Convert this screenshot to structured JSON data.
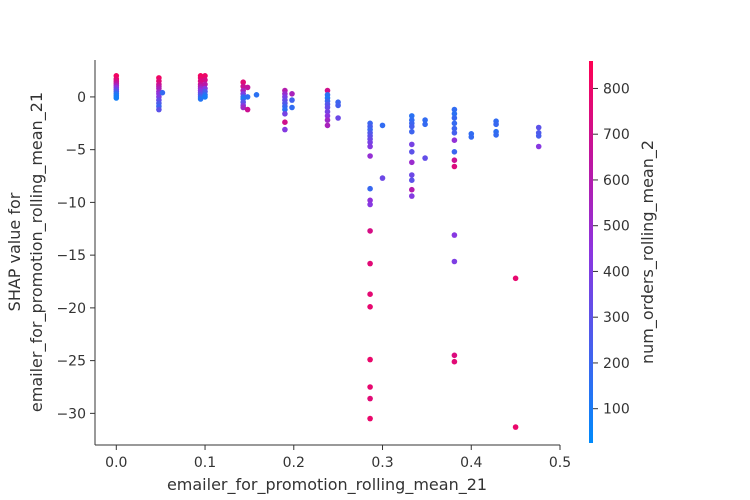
{
  "chart_data": {
    "type": "scatter",
    "title": "",
    "xlabel": "emailer_for_promotion_rolling_mean_21",
    "ylabel_lines": [
      "SHAP value for",
      "emailer_for_promotion_rolling_mean_21"
    ],
    "colorbar_label": "num_orders_rolling_mean_2",
    "xlim": [
      -0.024,
      0.5
    ],
    "ylim": [
      -33,
      3.5
    ],
    "x_ticks": [
      0.0,
      0.1,
      0.2,
      0.3,
      0.4,
      0.5
    ],
    "x_tick_labels": [
      "0.0",
      "0.1",
      "0.2",
      "0.3",
      "0.4",
      "0.5"
    ],
    "y_ticks": [
      0,
      -5,
      -10,
      -15,
      -20,
      -25,
      -30
    ],
    "y_tick_labels": [
      "0",
      "−5",
      "−10",
      "−15",
      "−20",
      "−25",
      "−30"
    ],
    "colorbar_range": [
      25,
      860
    ],
    "colorbar_ticks": [
      100,
      200,
      300,
      400,
      500,
      600,
      700,
      800
    ],
    "colorbar_tick_labels": [
      "100",
      "200",
      "300",
      "400",
      "500",
      "600",
      "700",
      "800"
    ],
    "colormap": [
      "#008afb",
      "#ff0052"
    ],
    "grid": false,
    "points": [
      {
        "x": 0.0,
        "y": 2.0,
        "c": 820
      },
      {
        "x": 0.0,
        "y": 1.7,
        "c": 780
      },
      {
        "x": 0.0,
        "y": 1.5,
        "c": 720
      },
      {
        "x": 0.0,
        "y": 1.3,
        "c": 650
      },
      {
        "x": 0.0,
        "y": 1.1,
        "c": 560
      },
      {
        "x": 0.0,
        "y": 0.9,
        "c": 450
      },
      {
        "x": 0.0,
        "y": 0.7,
        "c": 350
      },
      {
        "x": 0.0,
        "y": 0.5,
        "c": 250
      },
      {
        "x": 0.0,
        "y": 0.3,
        "c": 150
      },
      {
        "x": 0.0,
        "y": 0.1,
        "c": 100
      },
      {
        "x": 0.0,
        "y": -0.1,
        "c": 80
      },
      {
        "x": 0.048,
        "y": 1.8,
        "c": 810
      },
      {
        "x": 0.048,
        "y": 1.5,
        "c": 760
      },
      {
        "x": 0.048,
        "y": 1.2,
        "c": 700
      },
      {
        "x": 0.048,
        "y": 1.0,
        "c": 640
      },
      {
        "x": 0.048,
        "y": 0.8,
        "c": 580
      },
      {
        "x": 0.048,
        "y": 0.5,
        "c": 520
      },
      {
        "x": 0.048,
        "y": 0.3,
        "c": 460
      },
      {
        "x": 0.048,
        "y": 0.0,
        "c": 400
      },
      {
        "x": 0.048,
        "y": -0.3,
        "c": 330
      },
      {
        "x": 0.048,
        "y": -0.6,
        "c": 260
      },
      {
        "x": 0.048,
        "y": -0.9,
        "c": 200
      },
      {
        "x": 0.048,
        "y": -1.2,
        "c": 300
      },
      {
        "x": 0.052,
        "y": 0.4,
        "c": 180
      },
      {
        "x": 0.095,
        "y": 2.0,
        "c": 830
      },
      {
        "x": 0.095,
        "y": 1.8,
        "c": 790
      },
      {
        "x": 0.095,
        "y": 1.5,
        "c": 740
      },
      {
        "x": 0.095,
        "y": 1.2,
        "c": 680
      },
      {
        "x": 0.095,
        "y": 1.0,
        "c": 600
      },
      {
        "x": 0.095,
        "y": 0.8,
        "c": 520
      },
      {
        "x": 0.095,
        "y": 0.6,
        "c": 440
      },
      {
        "x": 0.095,
        "y": 0.4,
        "c": 360
      },
      {
        "x": 0.095,
        "y": 0.2,
        "c": 280
      },
      {
        "x": 0.095,
        "y": 0.0,
        "c": 200
      },
      {
        "x": 0.095,
        "y": -0.2,
        "c": 130
      },
      {
        "x": 0.1,
        "y": 2.0,
        "c": 800
      },
      {
        "x": 0.1,
        "y": 1.6,
        "c": 720
      },
      {
        "x": 0.1,
        "y": 1.2,
        "c": 620
      },
      {
        "x": 0.1,
        "y": 0.8,
        "c": 420
      },
      {
        "x": 0.1,
        "y": 0.5,
        "c": 250
      },
      {
        "x": 0.1,
        "y": 0.2,
        "c": 150
      },
      {
        "x": 0.1,
        "y": 0.0,
        "c": 90
      },
      {
        "x": 0.143,
        "y": 1.4,
        "c": 760
      },
      {
        "x": 0.143,
        "y": 1.0,
        "c": 680
      },
      {
        "x": 0.143,
        "y": 0.6,
        "c": 560
      },
      {
        "x": 0.143,
        "y": 0.3,
        "c": 400
      },
      {
        "x": 0.143,
        "y": 0.0,
        "c": 200
      },
      {
        "x": 0.143,
        "y": -0.2,
        "c": 120
      },
      {
        "x": 0.143,
        "y": -0.5,
        "c": 300
      },
      {
        "x": 0.143,
        "y": -0.8,
        "c": 420
      },
      {
        "x": 0.143,
        "y": -1.0,
        "c": 520
      },
      {
        "x": 0.148,
        "y": 0.9,
        "c": 650
      },
      {
        "x": 0.148,
        "y": 0.0,
        "c": 160
      },
      {
        "x": 0.148,
        "y": -1.2,
        "c": 690
      },
      {
        "x": 0.158,
        "y": 0.2,
        "c": 150
      },
      {
        "x": 0.19,
        "y": 0.6,
        "c": 600
      },
      {
        "x": 0.19,
        "y": 0.3,
        "c": 500
      },
      {
        "x": 0.19,
        "y": 0.0,
        "c": 400
      },
      {
        "x": 0.19,
        "y": -0.3,
        "c": 330
      },
      {
        "x": 0.19,
        "y": -0.6,
        "c": 270
      },
      {
        "x": 0.19,
        "y": -0.9,
        "c": 200
      },
      {
        "x": 0.19,
        "y": -1.2,
        "c": 150
      },
      {
        "x": 0.19,
        "y": -1.6,
        "c": 380
      },
      {
        "x": 0.19,
        "y": -2.4,
        "c": 700
      },
      {
        "x": 0.19,
        "y": -3.1,
        "c": 420
      },
      {
        "x": 0.198,
        "y": 0.3,
        "c": 560
      },
      {
        "x": 0.198,
        "y": -0.3,
        "c": 220
      },
      {
        "x": 0.198,
        "y": -1.0,
        "c": 170
      },
      {
        "x": 0.238,
        "y": 0.6,
        "c": 700
      },
      {
        "x": 0.238,
        "y": 0.2,
        "c": 150
      },
      {
        "x": 0.238,
        "y": -0.1,
        "c": 120
      },
      {
        "x": 0.238,
        "y": -0.4,
        "c": 200
      },
      {
        "x": 0.238,
        "y": -0.7,
        "c": 280
      },
      {
        "x": 0.238,
        "y": -1.0,
        "c": 330
      },
      {
        "x": 0.238,
        "y": -1.4,
        "c": 380
      },
      {
        "x": 0.238,
        "y": -1.8,
        "c": 450
      },
      {
        "x": 0.238,
        "y": -2.2,
        "c": 520
      },
      {
        "x": 0.238,
        "y": -2.7,
        "c": 560
      },
      {
        "x": 0.25,
        "y": -0.5,
        "c": 200
      },
      {
        "x": 0.25,
        "y": -0.8,
        "c": 230
      },
      {
        "x": 0.25,
        "y": -2.0,
        "c": 350
      },
      {
        "x": 0.286,
        "y": -2.5,
        "c": 200
      },
      {
        "x": 0.286,
        "y": -2.8,
        "c": 240
      },
      {
        "x": 0.286,
        "y": -3.1,
        "c": 200
      },
      {
        "x": 0.286,
        "y": -3.4,
        "c": 260
      },
      {
        "x": 0.286,
        "y": -3.7,
        "c": 300
      },
      {
        "x": 0.286,
        "y": -4.0,
        "c": 330
      },
      {
        "x": 0.286,
        "y": -4.3,
        "c": 380
      },
      {
        "x": 0.286,
        "y": -4.7,
        "c": 420
      },
      {
        "x": 0.286,
        "y": -5.6,
        "c": 480
      },
      {
        "x": 0.286,
        "y": -8.7,
        "c": 190
      },
      {
        "x": 0.286,
        "y": -9.8,
        "c": 460
      },
      {
        "x": 0.286,
        "y": -10.2,
        "c": 430
      },
      {
        "x": 0.286,
        "y": -12.7,
        "c": 720
      },
      {
        "x": 0.286,
        "y": -15.8,
        "c": 760
      },
      {
        "x": 0.286,
        "y": -18.7,
        "c": 770
      },
      {
        "x": 0.286,
        "y": -19.9,
        "c": 780
      },
      {
        "x": 0.286,
        "y": -24.9,
        "c": 790
      },
      {
        "x": 0.286,
        "y": -27.5,
        "c": 780
      },
      {
        "x": 0.286,
        "y": -28.6,
        "c": 760
      },
      {
        "x": 0.286,
        "y": -30.5,
        "c": 790
      },
      {
        "x": 0.3,
        "y": -2.7,
        "c": 170
      },
      {
        "x": 0.3,
        "y": -7.7,
        "c": 350
      },
      {
        "x": 0.333,
        "y": -1.8,
        "c": 150
      },
      {
        "x": 0.333,
        "y": -2.2,
        "c": 170
      },
      {
        "x": 0.333,
        "y": -2.5,
        "c": 200
      },
      {
        "x": 0.333,
        "y": -2.8,
        "c": 230
      },
      {
        "x": 0.333,
        "y": -3.3,
        "c": 210
      },
      {
        "x": 0.333,
        "y": -4.5,
        "c": 380
      },
      {
        "x": 0.333,
        "y": -5.2,
        "c": 300
      },
      {
        "x": 0.333,
        "y": -6.2,
        "c": 500
      },
      {
        "x": 0.333,
        "y": -7.4,
        "c": 350
      },
      {
        "x": 0.333,
        "y": -7.9,
        "c": 300
      },
      {
        "x": 0.333,
        "y": -8.8,
        "c": 600
      },
      {
        "x": 0.333,
        "y": -9.4,
        "c": 420
      },
      {
        "x": 0.348,
        "y": -2.2,
        "c": 170
      },
      {
        "x": 0.348,
        "y": -2.6,
        "c": 180
      },
      {
        "x": 0.348,
        "y": -5.8,
        "c": 320
      },
      {
        "x": 0.381,
        "y": -1.2,
        "c": 170
      },
      {
        "x": 0.381,
        "y": -1.6,
        "c": 150
      },
      {
        "x": 0.381,
        "y": -2.0,
        "c": 190
      },
      {
        "x": 0.381,
        "y": -2.5,
        "c": 180
      },
      {
        "x": 0.381,
        "y": -3.0,
        "c": 200
      },
      {
        "x": 0.381,
        "y": -3.4,
        "c": 230
      },
      {
        "x": 0.381,
        "y": -4.1,
        "c": 470
      },
      {
        "x": 0.381,
        "y": -5.2,
        "c": 200
      },
      {
        "x": 0.381,
        "y": -6.0,
        "c": 680
      },
      {
        "x": 0.381,
        "y": -6.6,
        "c": 740
      },
      {
        "x": 0.381,
        "y": -13.1,
        "c": 430
      },
      {
        "x": 0.381,
        "y": -15.6,
        "c": 400
      },
      {
        "x": 0.381,
        "y": -24.5,
        "c": 740
      },
      {
        "x": 0.381,
        "y": -25.1,
        "c": 760
      },
      {
        "x": 0.4,
        "y": -3.5,
        "c": 170
      },
      {
        "x": 0.4,
        "y": -3.8,
        "c": 180
      },
      {
        "x": 0.428,
        "y": -2.3,
        "c": 170
      },
      {
        "x": 0.428,
        "y": -2.6,
        "c": 190
      },
      {
        "x": 0.428,
        "y": -3.3,
        "c": 160
      },
      {
        "x": 0.428,
        "y": -3.6,
        "c": 180
      },
      {
        "x": 0.45,
        "y": -17.2,
        "c": 780
      },
      {
        "x": 0.45,
        "y": -31.3,
        "c": 790
      },
      {
        "x": 0.476,
        "y": -2.9,
        "c": 300
      },
      {
        "x": 0.476,
        "y": -3.4,
        "c": 260
      },
      {
        "x": 0.476,
        "y": -3.7,
        "c": 240
      },
      {
        "x": 0.476,
        "y": -4.7,
        "c": 430
      }
    ]
  }
}
